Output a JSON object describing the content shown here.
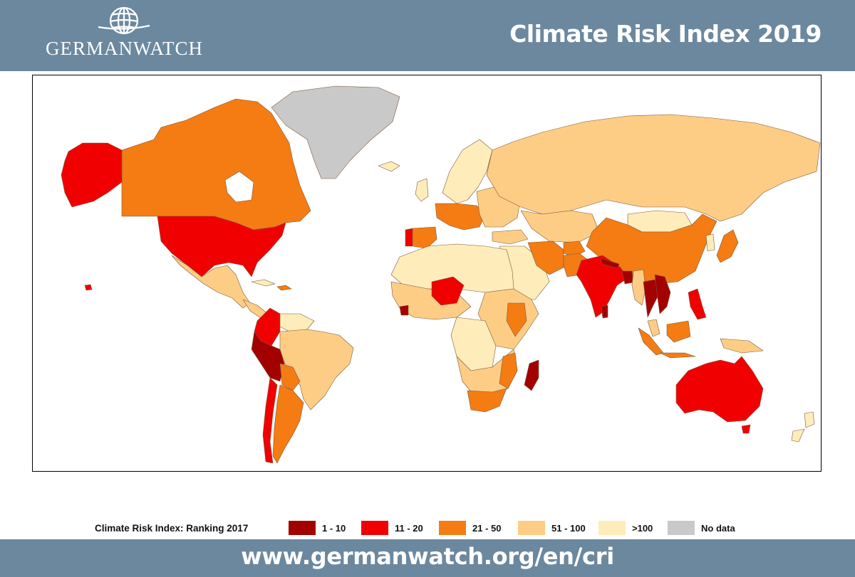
{
  "header": {
    "logo_text": "GERMANWATCH",
    "logo_icon": "globe-icon",
    "title": "Climate Risk Index 2019"
  },
  "colors": {
    "frame": "#6b889f",
    "rank_1_10": "#a30000",
    "rank_11_20": "#f00000",
    "rank_21_50": "#f47c13",
    "rank_51_100": "#fdcd85",
    "rank_over_100": "#feecbb",
    "no_data": "#c9c9c9"
  },
  "map": {
    "type": "choropleth world map",
    "regions": [
      {
        "name": "Alaska",
        "category": "11 - 20"
      },
      {
        "name": "Canada",
        "category": "21 - 50"
      },
      {
        "name": "United States",
        "category": "11 - 20"
      },
      {
        "name": "Greenland",
        "category": "No data"
      },
      {
        "name": "Mexico",
        "category": "51 - 100"
      },
      {
        "name": "Peru",
        "category": "1 - 10"
      },
      {
        "name": "Colombia",
        "category": "11 - 20"
      },
      {
        "name": "Chile",
        "category": "11 - 20"
      },
      {
        "name": "Argentina",
        "category": "21 - 50"
      },
      {
        "name": "Brazil",
        "category": "51 - 100"
      },
      {
        "name": "Russia",
        "category": "51 - 100"
      },
      {
        "name": "China",
        "category": "21 - 50"
      },
      {
        "name": "India",
        "category": "11 - 20"
      },
      {
        "name": "Bangladesh",
        "category": "1 - 10"
      },
      {
        "name": "Nepal",
        "category": "1 - 10"
      },
      {
        "name": "Vietnam",
        "category": "1 - 10"
      },
      {
        "name": "Thailand",
        "category": "1 - 10"
      },
      {
        "name": "Sri Lanka",
        "category": "1 - 10"
      },
      {
        "name": "Madagascar",
        "category": "1 - 10"
      },
      {
        "name": "Sierra Leone",
        "category": "1 - 10"
      },
      {
        "name": "Niger",
        "category": "11 - 20"
      },
      {
        "name": "Philippines",
        "category": "11 - 20"
      },
      {
        "name": "Australia",
        "category": "11 - 20"
      },
      {
        "name": "South Africa",
        "category": "21 - 50"
      },
      {
        "name": "Mozambique",
        "category": "21 - 50"
      },
      {
        "name": "Indonesia",
        "category": "21 - 50"
      },
      {
        "name": "Japan",
        "category": "21 - 50"
      },
      {
        "name": "Iran",
        "category": "21 - 50"
      },
      {
        "name": "Pakistan",
        "category": "21 - 50"
      },
      {
        "name": "Kenya",
        "category": "21 - 50"
      },
      {
        "name": "Portugal",
        "category": "11 - 20"
      },
      {
        "name": "Spain",
        "category": "21 - 50"
      },
      {
        "name": "Africa (other)",
        "category": "51 - 100"
      },
      {
        "name": "Scandinavia",
        "category": ">100"
      },
      {
        "name": "Mongolia",
        "category": ">100"
      },
      {
        "name": "New Zealand",
        "category": ">100"
      }
    ]
  },
  "legend": {
    "title": "Climate Risk Index: Ranking 2017",
    "items": [
      {
        "label": "1 - 10",
        "color": "#a30000"
      },
      {
        "label": "11 - 20",
        "color": "#f00000"
      },
      {
        "label": "21 - 50",
        "color": "#f47c13"
      },
      {
        "label": "51 - 100",
        "color": "#fdcd85"
      },
      {
        "label": ">100",
        "color": "#feecbb"
      },
      {
        "label": "No data",
        "color": "#c9c9c9"
      }
    ]
  },
  "footer": {
    "url": "www.germanwatch.org/en/cri"
  }
}
